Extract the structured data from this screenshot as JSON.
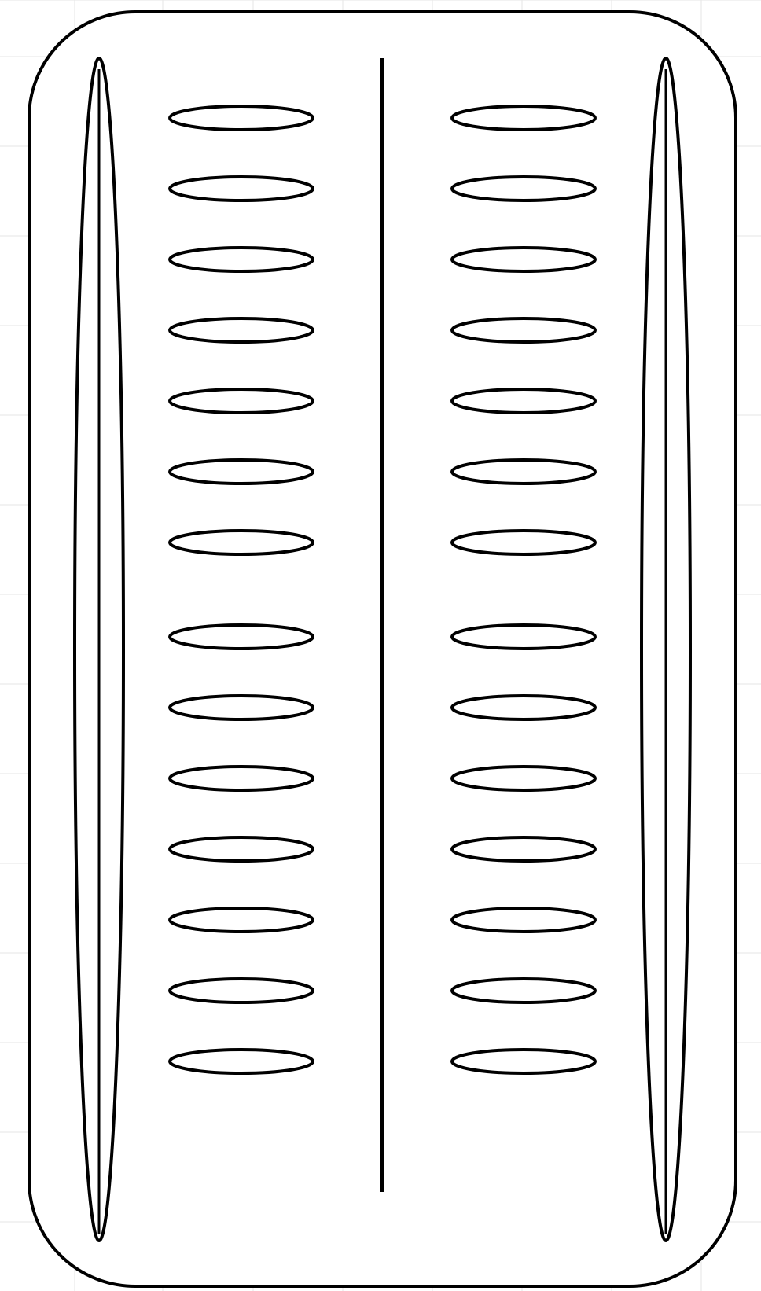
{
  "canvas": {
    "background_color": "#ffffff",
    "grid_color": "#e6e6e6",
    "grid": true
  },
  "diagram": {
    "stroke_color": "#000000",
    "fill_color": "#ffffff",
    "left_column_slots": 14,
    "right_column_slots": 14,
    "side_bars": 2,
    "center_divider": true
  }
}
